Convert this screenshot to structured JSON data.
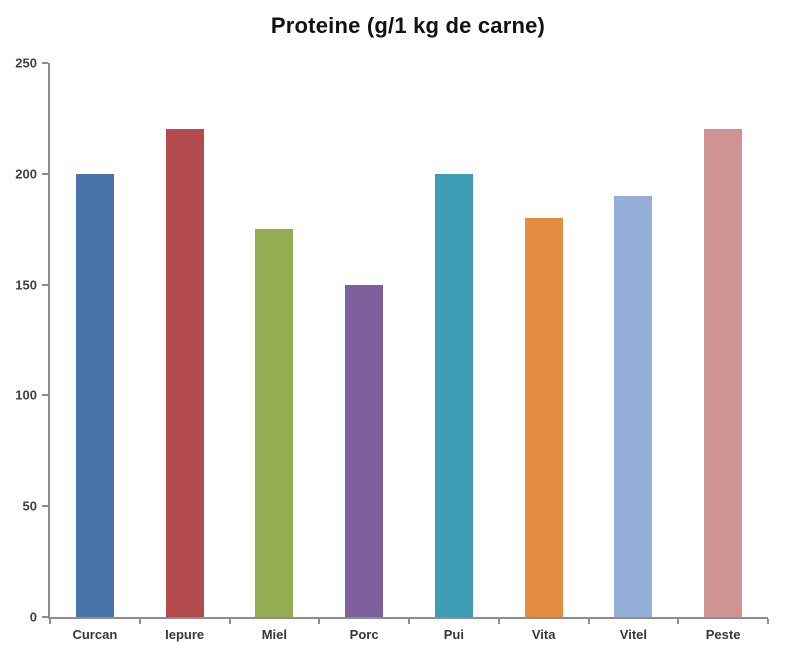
{
  "chart_data": {
    "type": "bar",
    "title": "Proteine (g/1 kg de carne)",
    "categories": [
      "Curcan",
      "Iepure",
      "Miel",
      "Porc",
      "Pui",
      "Vita",
      "Vitel",
      "Peste"
    ],
    "values": [
      200,
      220,
      175,
      150,
      200,
      180,
      190,
      220
    ],
    "bar_colors": [
      "#4a73a8",
      "#b24a4e",
      "#93ad52",
      "#7d5f9c",
      "#3f9cb5",
      "#e68c40",
      "#94aed7",
      "#d09394"
    ],
    "xlabel": "",
    "ylabel": "",
    "ylim": [
      0,
      250
    ],
    "yticks": [
      0,
      50,
      100,
      150,
      200,
      250
    ],
    "grid": false,
    "legend": "none",
    "axis_color": "#8e8e8e",
    "tick_label_color": "#404040",
    "category_label_color": "#343841",
    "title_color": "#121212",
    "background_color": "#ffffff"
  }
}
